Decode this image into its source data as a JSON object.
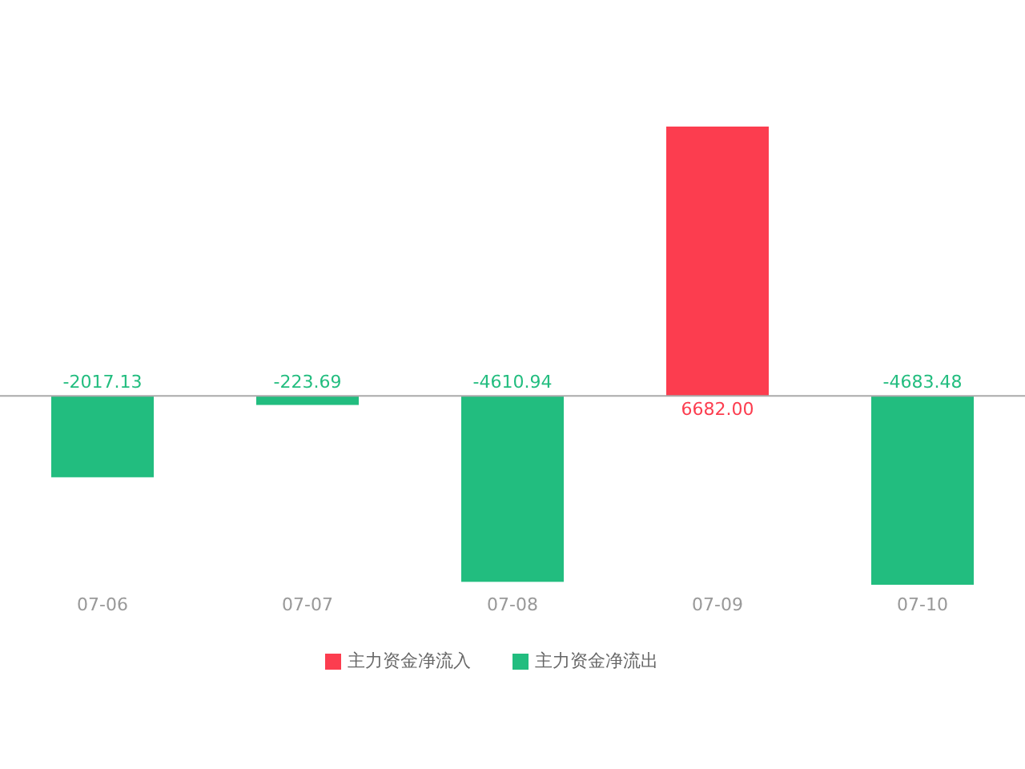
{
  "chart_data": {
    "type": "bar",
    "categories": [
      "07-06",
      "07-07",
      "07-08",
      "07-09",
      "07-10"
    ],
    "series": [
      {
        "name": "主力资金净流入",
        "color": "#fc3d4f",
        "values": [
          null,
          null,
          null,
          6682,
          null
        ],
        "value_labels": [
          null,
          null,
          null,
          "6682.00",
          null
        ]
      },
      {
        "name": "主力资金净流出",
        "color": "#22bd7f",
        "values": [
          -2017.13,
          -223.69,
          -4610.94,
          null,
          -4683.48
        ],
        "value_labels": [
          "-2017.13",
          "-223.69",
          "-4610.94",
          null,
          "-4683.48"
        ]
      }
    ],
    "stacked": true,
    "grid": false,
    "legend": "bottom"
  }
}
